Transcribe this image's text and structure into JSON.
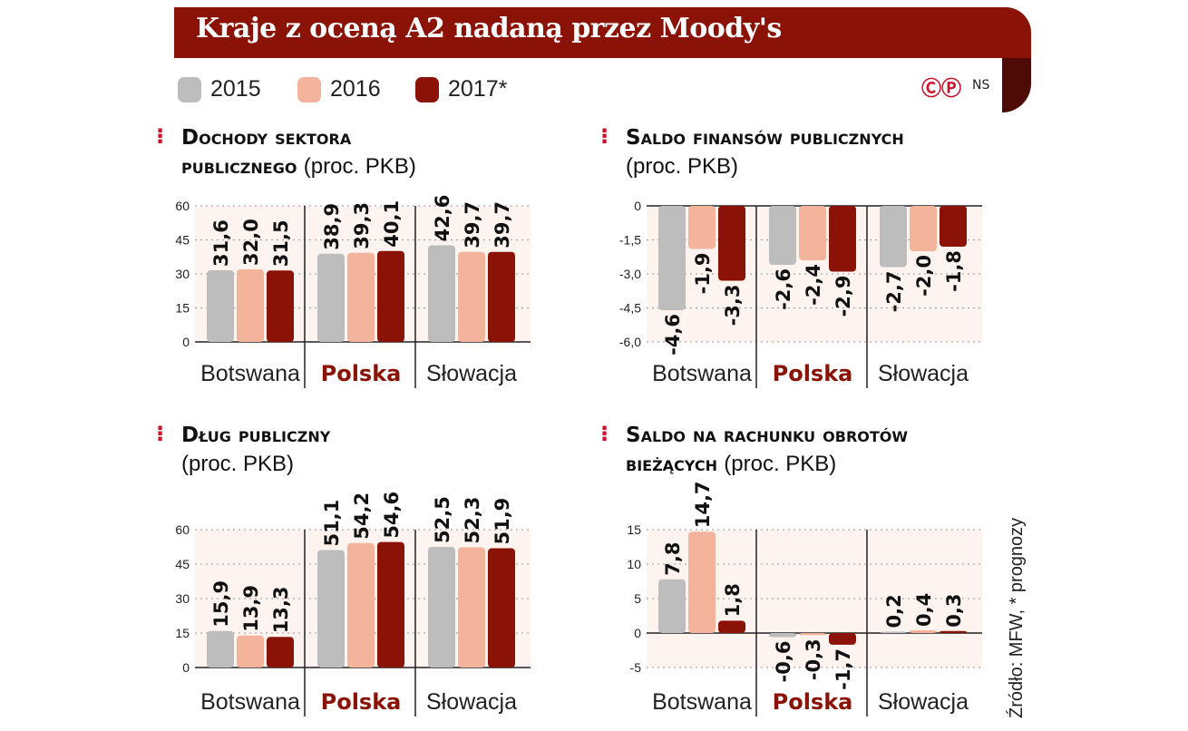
{
  "title": "Kraje z oceną A2 nadaną przez Moody's",
  "legend": [
    {
      "label": "2015",
      "color": "#bdbdbd"
    },
    {
      "label": "2016",
      "color": "#f4b49c"
    },
    {
      "label": "2017*",
      "color": "#8b1206"
    }
  ],
  "credit": {
    "logo": "CP",
    "author": "NS"
  },
  "source": "Źródło: MFW, * prognozy",
  "colors": {
    "accent": "#8b1206",
    "highlight_category": "#8b1206"
  },
  "chart_data": [
    {
      "type": "bar",
      "title_bold_1": "Dochody sektora",
      "title_bold_2": "publicznego",
      "title_unit": "(proc. PKB)",
      "categories": [
        "Botswana",
        "Polska",
        "Słowacja"
      ],
      "highlight": "Polska",
      "series": [
        {
          "name": "2015",
          "values": [
            31.6,
            38.9,
            42.6
          ]
        },
        {
          "name": "2016",
          "values": [
            32.0,
            39.3,
            39.7
          ]
        },
        {
          "name": "2017*",
          "values": [
            31.5,
            40.1,
            39.7
          ]
        }
      ],
      "labels": [
        [
          "31,6",
          "32,0",
          "31,5"
        ],
        [
          "38,9",
          "39,3",
          "40,1"
        ],
        [
          "42,6",
          "39,7",
          "39,7"
        ]
      ],
      "yticks": [
        "0",
        "15",
        "30",
        "45",
        "60"
      ],
      "ylim": [
        0,
        60
      ]
    },
    {
      "type": "bar",
      "title_bold_1": "Saldo finansów publicznych",
      "title_bold_2": "",
      "title_unit": "(proc. PKB)",
      "categories": [
        "Botswana",
        "Polska",
        "Słowacja"
      ],
      "highlight": "Polska",
      "series": [
        {
          "name": "2015",
          "values": [
            -4.6,
            -2.6,
            -2.7
          ]
        },
        {
          "name": "2016",
          "values": [
            -1.9,
            -2.4,
            -2.0
          ]
        },
        {
          "name": "2017*",
          "values": [
            -3.3,
            -2.9,
            -1.8
          ]
        }
      ],
      "labels": [
        [
          "-4,6",
          "-1,9",
          "-3,3"
        ],
        [
          "-2,6",
          "-2,4",
          "-2,9"
        ],
        [
          "-2,7",
          "-2,0",
          "-1,8"
        ]
      ],
      "yticks": [
        "0",
        "-1,5",
        "-3,0",
        "-4,5",
        "-6,0"
      ],
      "ylim": [
        -6,
        0
      ]
    },
    {
      "type": "bar",
      "title_bold_1": "Dług publiczny",
      "title_bold_2": "",
      "title_unit": "(proc. PKB)",
      "categories": [
        "Botswana",
        "Polska",
        "Słowacja"
      ],
      "highlight": "Polska",
      "series": [
        {
          "name": "2015",
          "values": [
            15.9,
            51.1,
            52.5
          ]
        },
        {
          "name": "2016",
          "values": [
            13.9,
            54.2,
            52.3
          ]
        },
        {
          "name": "2017*",
          "values": [
            13.3,
            54.6,
            51.9
          ]
        }
      ],
      "labels": [
        [
          "15,9",
          "13,9",
          "13,3"
        ],
        [
          "51,1",
          "54,2",
          "54,6"
        ],
        [
          "52,5",
          "52,3",
          "51,9"
        ]
      ],
      "yticks": [
        "0",
        "15",
        "30",
        "45",
        "60"
      ],
      "ylim": [
        0,
        60
      ]
    },
    {
      "type": "bar",
      "title_bold_1": "Saldo na rachunku obrotów",
      "title_bold_2": "bieżących",
      "title_unit": "(proc. PKB)",
      "categories": [
        "Botswana",
        "Polska",
        "Słowacja"
      ],
      "highlight": "Polska",
      "series": [
        {
          "name": "2015",
          "values": [
            7.8,
            -0.6,
            0.2
          ]
        },
        {
          "name": "2016",
          "values": [
            14.7,
            -0.3,
            0.4
          ]
        },
        {
          "name": "2017*",
          "values": [
            1.8,
            -1.7,
            0.3
          ]
        }
      ],
      "labels": [
        [
          "7,8",
          "14,7",
          "1,8"
        ],
        [
          "-0,6",
          "-0,3",
          "-1,7"
        ],
        [
          "0,2",
          "0,4",
          "0,3"
        ]
      ],
      "yticks": [
        "-5",
        "0",
        "5",
        "10",
        "15"
      ],
      "ylim": [
        -5,
        15
      ]
    }
  ]
}
